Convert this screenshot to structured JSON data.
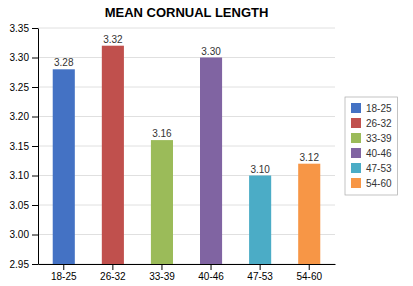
{
  "chart_data": {
    "type": "bar",
    "title": "MEAN CORNUAL LENGTH",
    "categories": [
      "18-25",
      "26-32",
      "33-39",
      "40-46",
      "47-53",
      "54-60"
    ],
    "values": [
      3.28,
      3.32,
      3.16,
      3.3,
      3.1,
      3.12
    ],
    "value_labels": [
      "3.28",
      "3.32",
      "3.16",
      "3.30",
      "3.10",
      "3.12"
    ],
    "colors": [
      "#4472C4",
      "#C0504D",
      "#9BBB59",
      "#8064A2",
      "#4BACC6",
      "#F79646"
    ],
    "ylim": [
      2.95,
      3.35
    ],
    "yticks": [
      2.95,
      {
        "value": 3,
        "label": "3.00"
      },
      3.05,
      {
        "value": 3.1,
        "label": "3.10"
      },
      3.15,
      {
        "value": 3.2,
        "label": "3.20"
      },
      3.25,
      {
        "value": 3.3,
        "label": "3.30"
      },
      3.35
    ],
    "grid": true,
    "data_labels": true,
    "legend": "right"
  }
}
